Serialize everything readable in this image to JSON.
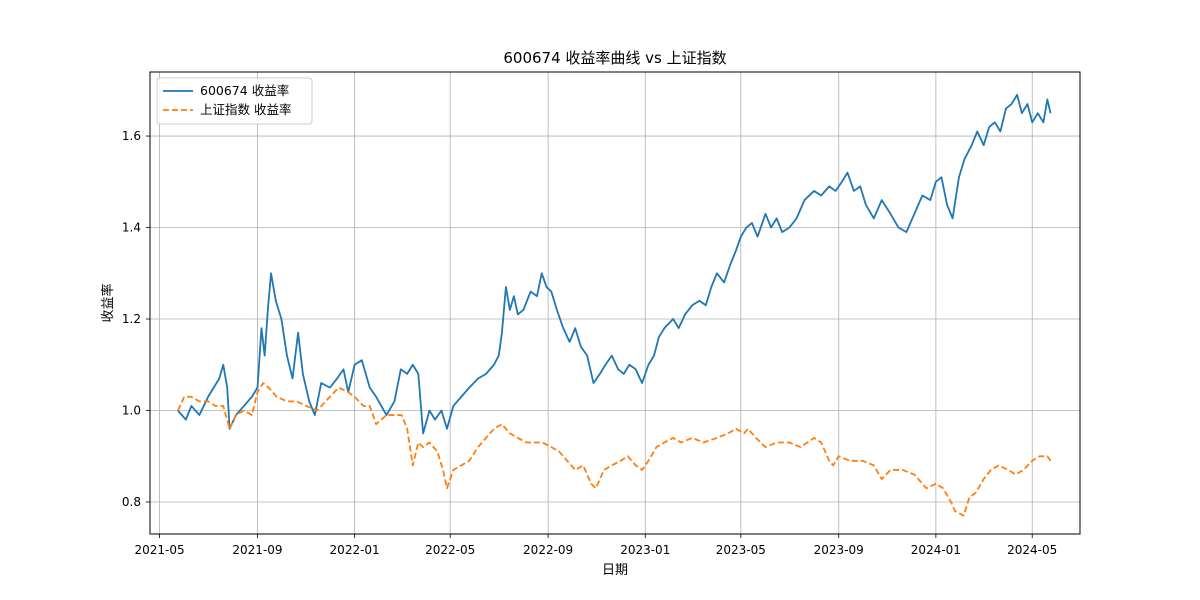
{
  "chart_data": {
    "type": "line",
    "title": "600674 收益率曲线 vs 上证指数",
    "xlabel": "日期",
    "ylabel": "收益率",
    "xlim": [
      "2021-04-19",
      "2024-06-30"
    ],
    "ylim": [
      0.73,
      1.74
    ],
    "x_tick_dates": [
      "2021-05-01",
      "2021-09-01",
      "2022-01-01",
      "2022-05-01",
      "2022-09-01",
      "2023-01-01",
      "2023-05-01",
      "2023-09-01",
      "2024-01-01",
      "2024-05-01"
    ],
    "x_tick_labels": [
      "2021-05",
      "2021-09",
      "2022-01",
      "2022-05",
      "2022-09",
      "2023-01",
      "2023-05",
      "2023-09",
      "2024-01",
      "2024-05"
    ],
    "y_ticks": [
      0.8,
      1.0,
      1.2,
      1.4,
      1.6
    ],
    "y_tick_labels": [
      "0.8",
      "1.0",
      "1.2",
      "1.4",
      "1.6"
    ],
    "grid": true,
    "legend_position": "upper left",
    "series": [
      {
        "name": "600674 收益率",
        "color": "#1f77b4",
        "style": "solid",
        "points": [
          [
            "2021-05-24",
            1.0
          ],
          [
            "2021-06-03",
            0.98
          ],
          [
            "2021-06-10",
            1.01
          ],
          [
            "2021-06-20",
            0.99
          ],
          [
            "2021-07-01",
            1.03
          ],
          [
            "2021-07-08",
            1.05
          ],
          [
            "2021-07-15",
            1.07
          ],
          [
            "2021-07-20",
            1.1
          ],
          [
            "2021-07-25",
            1.05
          ],
          [
            "2021-07-28",
            0.96
          ],
          [
            "2021-08-05",
            0.99
          ],
          [
            "2021-08-15",
            1.01
          ],
          [
            "2021-08-25",
            1.03
          ],
          [
            "2021-09-01",
            1.05
          ],
          [
            "2021-09-06",
            1.18
          ],
          [
            "2021-09-10",
            1.12
          ],
          [
            "2021-09-14",
            1.22
          ],
          [
            "2021-09-18",
            1.3
          ],
          [
            "2021-09-24",
            1.24
          ],
          [
            "2021-10-01",
            1.2
          ],
          [
            "2021-10-08",
            1.12
          ],
          [
            "2021-10-15",
            1.07
          ],
          [
            "2021-10-22",
            1.17
          ],
          [
            "2021-10-28",
            1.08
          ],
          [
            "2021-11-05",
            1.02
          ],
          [
            "2021-11-12",
            0.99
          ],
          [
            "2021-11-20",
            1.06
          ],
          [
            "2021-12-01",
            1.05
          ],
          [
            "2021-12-10",
            1.07
          ],
          [
            "2021-12-18",
            1.09
          ],
          [
            "2021-12-24",
            1.04
          ],
          [
            "2022-01-01",
            1.1
          ],
          [
            "2022-01-10",
            1.11
          ],
          [
            "2022-01-20",
            1.05
          ],
          [
            "2022-01-28",
            1.03
          ],
          [
            "2022-02-10",
            0.99
          ],
          [
            "2022-02-20",
            1.02
          ],
          [
            "2022-02-28",
            1.09
          ],
          [
            "2022-03-08",
            1.08
          ],
          [
            "2022-03-15",
            1.1
          ],
          [
            "2022-03-22",
            1.08
          ],
          [
            "2022-03-28",
            0.95
          ],
          [
            "2022-04-05",
            1.0
          ],
          [
            "2022-04-12",
            0.98
          ],
          [
            "2022-04-20",
            1.0
          ],
          [
            "2022-04-27",
            0.96
          ],
          [
            "2022-05-05",
            1.01
          ],
          [
            "2022-05-15",
            1.03
          ],
          [
            "2022-05-25",
            1.05
          ],
          [
            "2022-06-05",
            1.07
          ],
          [
            "2022-06-15",
            1.08
          ],
          [
            "2022-06-25",
            1.1
          ],
          [
            "2022-07-01",
            1.12
          ],
          [
            "2022-07-05",
            1.17
          ],
          [
            "2022-07-10",
            1.27
          ],
          [
            "2022-07-15",
            1.22
          ],
          [
            "2022-07-20",
            1.25
          ],
          [
            "2022-07-25",
            1.21
          ],
          [
            "2022-08-01",
            1.22
          ],
          [
            "2022-08-10",
            1.26
          ],
          [
            "2022-08-18",
            1.25
          ],
          [
            "2022-08-24",
            1.3
          ],
          [
            "2022-08-30",
            1.27
          ],
          [
            "2022-09-05",
            1.26
          ],
          [
            "2022-09-12",
            1.22
          ],
          [
            "2022-09-20",
            1.18
          ],
          [
            "2022-09-28",
            1.15
          ],
          [
            "2022-10-05",
            1.18
          ],
          [
            "2022-10-12",
            1.14
          ],
          [
            "2022-10-20",
            1.12
          ],
          [
            "2022-10-28",
            1.06
          ],
          [
            "2022-11-05",
            1.08
          ],
          [
            "2022-11-12",
            1.1
          ],
          [
            "2022-11-20",
            1.12
          ],
          [
            "2022-11-28",
            1.09
          ],
          [
            "2022-12-05",
            1.08
          ],
          [
            "2022-12-12",
            1.1
          ],
          [
            "2022-12-20",
            1.09
          ],
          [
            "2022-12-28",
            1.06
          ],
          [
            "2023-01-05",
            1.1
          ],
          [
            "2023-01-12",
            1.12
          ],
          [
            "2023-01-18",
            1.16
          ],
          [
            "2023-01-25",
            1.18
          ],
          [
            "2023-02-05",
            1.2
          ],
          [
            "2023-02-12",
            1.18
          ],
          [
            "2023-02-20",
            1.21
          ],
          [
            "2023-03-01",
            1.23
          ],
          [
            "2023-03-10",
            1.24
          ],
          [
            "2023-03-18",
            1.23
          ],
          [
            "2023-03-25",
            1.27
          ],
          [
            "2023-04-01",
            1.3
          ],
          [
            "2023-04-10",
            1.28
          ],
          [
            "2023-04-18",
            1.32
          ],
          [
            "2023-04-25",
            1.35
          ],
          [
            "2023-05-01",
            1.38
          ],
          [
            "2023-05-08",
            1.4
          ],
          [
            "2023-05-15",
            1.41
          ],
          [
            "2023-05-22",
            1.38
          ],
          [
            "2023-06-01",
            1.43
          ],
          [
            "2023-06-08",
            1.4
          ],
          [
            "2023-06-15",
            1.42
          ],
          [
            "2023-06-22",
            1.39
          ],
          [
            "2023-07-01",
            1.4
          ],
          [
            "2023-07-10",
            1.42
          ],
          [
            "2023-07-20",
            1.46
          ],
          [
            "2023-08-01",
            1.48
          ],
          [
            "2023-08-10",
            1.47
          ],
          [
            "2023-08-20",
            1.49
          ],
          [
            "2023-08-28",
            1.48
          ],
          [
            "2023-09-05",
            1.5
          ],
          [
            "2023-09-12",
            1.52
          ],
          [
            "2023-09-20",
            1.48
          ],
          [
            "2023-09-28",
            1.49
          ],
          [
            "2023-10-05",
            1.45
          ],
          [
            "2023-10-15",
            1.42
          ],
          [
            "2023-10-25",
            1.46
          ],
          [
            "2023-11-05",
            1.43
          ],
          [
            "2023-11-15",
            1.4
          ],
          [
            "2023-11-25",
            1.39
          ],
          [
            "2023-12-05",
            1.43
          ],
          [
            "2023-12-15",
            1.47
          ],
          [
            "2023-12-25",
            1.46
          ],
          [
            "2024-01-01",
            1.5
          ],
          [
            "2024-01-08",
            1.51
          ],
          [
            "2024-01-15",
            1.45
          ],
          [
            "2024-01-22",
            1.42
          ],
          [
            "2024-01-30",
            1.51
          ],
          [
            "2024-02-06",
            1.55
          ],
          [
            "2024-02-15",
            1.58
          ],
          [
            "2024-02-22",
            1.61
          ],
          [
            "2024-03-01",
            1.58
          ],
          [
            "2024-03-08",
            1.62
          ],
          [
            "2024-03-15",
            1.63
          ],
          [
            "2024-03-22",
            1.61
          ],
          [
            "2024-03-29",
            1.66
          ],
          [
            "2024-04-05",
            1.67
          ],
          [
            "2024-04-12",
            1.69
          ],
          [
            "2024-04-18",
            1.65
          ],
          [
            "2024-04-25",
            1.67
          ],
          [
            "2024-05-01",
            1.63
          ],
          [
            "2024-05-08",
            1.65
          ],
          [
            "2024-05-15",
            1.63
          ],
          [
            "2024-05-20",
            1.68
          ],
          [
            "2024-05-24",
            1.65
          ]
        ]
      },
      {
        "name": "上证指数 收益率",
        "color": "#ff7f0e",
        "style": "dashed",
        "points": [
          [
            "2021-05-24",
            1.0
          ],
          [
            "2021-06-01",
            1.03
          ],
          [
            "2021-06-10",
            1.03
          ],
          [
            "2021-06-20",
            1.02
          ],
          [
            "2021-07-01",
            1.02
          ],
          [
            "2021-07-10",
            1.01
          ],
          [
            "2021-07-20",
            1.01
          ],
          [
            "2021-07-28",
            0.96
          ],
          [
            "2021-08-05",
            0.99
          ],
          [
            "2021-08-15",
            1.0
          ],
          [
            "2021-08-25",
            0.99
          ],
          [
            "2021-09-01",
            1.04
          ],
          [
            "2021-09-08",
            1.06
          ],
          [
            "2021-09-15",
            1.05
          ],
          [
            "2021-09-25",
            1.03
          ],
          [
            "2021-10-08",
            1.02
          ],
          [
            "2021-10-20",
            1.02
          ],
          [
            "2021-11-01",
            1.01
          ],
          [
            "2021-11-15",
            1.0
          ],
          [
            "2021-12-01",
            1.03
          ],
          [
            "2021-12-12",
            1.05
          ],
          [
            "2021-12-24",
            1.04
          ],
          [
            "2022-01-01",
            1.03
          ],
          [
            "2022-01-12",
            1.01
          ],
          [
            "2022-01-20",
            1.01
          ],
          [
            "2022-01-28",
            0.97
          ],
          [
            "2022-02-10",
            0.99
          ],
          [
            "2022-02-20",
            0.99
          ],
          [
            "2022-03-01",
            0.99
          ],
          [
            "2022-03-08",
            0.96
          ],
          [
            "2022-03-15",
            0.88
          ],
          [
            "2022-03-22",
            0.93
          ],
          [
            "2022-03-28",
            0.92
          ],
          [
            "2022-04-05",
            0.93
          ],
          [
            "2022-04-15",
            0.91
          ],
          [
            "2022-04-22",
            0.87
          ],
          [
            "2022-04-27",
            0.83
          ],
          [
            "2022-05-05",
            0.87
          ],
          [
            "2022-05-15",
            0.88
          ],
          [
            "2022-05-25",
            0.89
          ],
          [
            "2022-06-05",
            0.92
          ],
          [
            "2022-06-15",
            0.94
          ],
          [
            "2022-06-25",
            0.96
          ],
          [
            "2022-07-05",
            0.97
          ],
          [
            "2022-07-15",
            0.95
          ],
          [
            "2022-07-25",
            0.94
          ],
          [
            "2022-08-05",
            0.93
          ],
          [
            "2022-08-15",
            0.93
          ],
          [
            "2022-08-25",
            0.93
          ],
          [
            "2022-09-05",
            0.92
          ],
          [
            "2022-09-15",
            0.91
          ],
          [
            "2022-09-25",
            0.89
          ],
          [
            "2022-10-05",
            0.87
          ],
          [
            "2022-10-15",
            0.88
          ],
          [
            "2022-10-25",
            0.84
          ],
          [
            "2022-10-31",
            0.83
          ],
          [
            "2022-11-10",
            0.87
          ],
          [
            "2022-11-20",
            0.88
          ],
          [
            "2022-12-01",
            0.89
          ],
          [
            "2022-12-10",
            0.9
          ],
          [
            "2022-12-20",
            0.88
          ],
          [
            "2022-12-28",
            0.87
          ],
          [
            "2023-01-05",
            0.89
          ],
          [
            "2023-01-15",
            0.92
          ],
          [
            "2023-01-25",
            0.93
          ],
          [
            "2023-02-05",
            0.94
          ],
          [
            "2023-02-15",
            0.93
          ],
          [
            "2023-03-01",
            0.94
          ],
          [
            "2023-03-15",
            0.93
          ],
          [
            "2023-04-01",
            0.94
          ],
          [
            "2023-04-15",
            0.95
          ],
          [
            "2023-04-25",
            0.96
          ],
          [
            "2023-05-05",
            0.95
          ],
          [
            "2023-05-10",
            0.96
          ],
          [
            "2023-05-20",
            0.94
          ],
          [
            "2023-06-01",
            0.92
          ],
          [
            "2023-06-15",
            0.93
          ],
          [
            "2023-07-01",
            0.93
          ],
          [
            "2023-07-15",
            0.92
          ],
          [
            "2023-08-01",
            0.94
          ],
          [
            "2023-08-10",
            0.93
          ],
          [
            "2023-08-20",
            0.89
          ],
          [
            "2023-08-25",
            0.88
          ],
          [
            "2023-09-01",
            0.9
          ],
          [
            "2023-09-15",
            0.89
          ],
          [
            "2023-10-01",
            0.89
          ],
          [
            "2023-10-15",
            0.88
          ],
          [
            "2023-10-25",
            0.85
          ],
          [
            "2023-11-05",
            0.87
          ],
          [
            "2023-11-20",
            0.87
          ],
          [
            "2023-12-05",
            0.86
          ],
          [
            "2023-12-20",
            0.83
          ],
          [
            "2024-01-01",
            0.84
          ],
          [
            "2024-01-10",
            0.83
          ],
          [
            "2024-01-20",
            0.8
          ],
          [
            "2024-01-25",
            0.78
          ],
          [
            "2024-02-05",
            0.77
          ],
          [
            "2024-02-12",
            0.81
          ],
          [
            "2024-02-20",
            0.82
          ],
          [
            "2024-03-01",
            0.85
          ],
          [
            "2024-03-10",
            0.87
          ],
          [
            "2024-03-20",
            0.88
          ],
          [
            "2024-04-01",
            0.87
          ],
          [
            "2024-04-10",
            0.86
          ],
          [
            "2024-04-20",
            0.87
          ],
          [
            "2024-05-01",
            0.89
          ],
          [
            "2024-05-10",
            0.9
          ],
          [
            "2024-05-20",
            0.9
          ],
          [
            "2024-05-24",
            0.89
          ]
        ]
      }
    ]
  }
}
